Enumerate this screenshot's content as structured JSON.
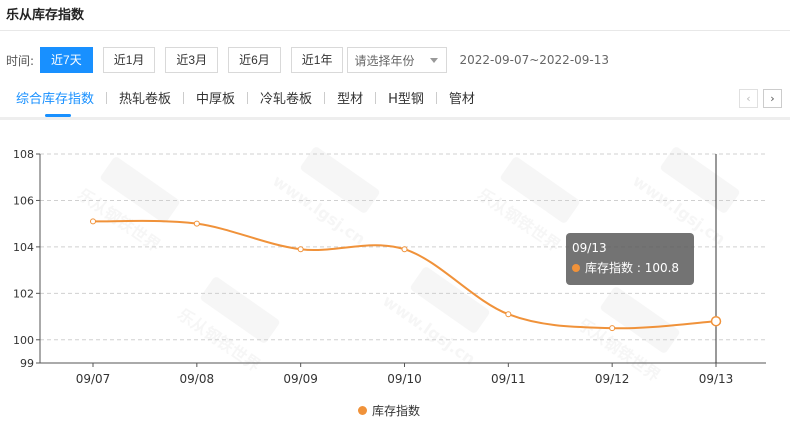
{
  "page": {
    "title": "乐从库存指数"
  },
  "filters": {
    "label": "时间:",
    "ranges": [
      {
        "label": "近7天",
        "active": true
      },
      {
        "label": "近1月",
        "active": false
      },
      {
        "label": "近3月",
        "active": false
      },
      {
        "label": "近6月",
        "active": false
      },
      {
        "label": "近1年",
        "active": false
      }
    ],
    "year_placeholder": "请选择年份",
    "date_range": "2022-09-07~2022-09-13"
  },
  "tabs": [
    {
      "label": "综合库存指数",
      "active": true
    },
    {
      "label": "热轧卷板",
      "active": false
    },
    {
      "label": "中厚板",
      "active": false
    },
    {
      "label": "冷轧卷板",
      "active": false
    },
    {
      "label": "型材",
      "active": false
    },
    {
      "label": "H型钢",
      "active": false
    },
    {
      "label": "管材",
      "active": false
    }
  ],
  "pager": {
    "prev": "‹",
    "next": "›"
  },
  "watermark": {
    "text": "乐从钢铁世界",
    "domain": "www.lgsj.cn"
  },
  "colors": {
    "accent": "#1890ff",
    "series": "#f0923a",
    "tooltip_bg": "#5a5a5a"
  },
  "tooltip": {
    "date": "09/13",
    "series": "库存指数",
    "value": "100.8"
  },
  "chart_data": {
    "type": "line",
    "title": "",
    "xlabel": "",
    "ylabel": "",
    "categories": [
      "09/07",
      "09/08",
      "09/09",
      "09/10",
      "09/11",
      "09/12",
      "09/13"
    ],
    "series": [
      {
        "name": "库存指数",
        "values": [
          105.1,
          105.0,
          103.9,
          103.9,
          101.1,
          100.5,
          100.8
        ]
      }
    ],
    "ylim": [
      99,
      108
    ],
    "yticks": [
      99,
      100,
      102,
      104,
      106,
      108
    ],
    "grid": true,
    "smooth": true,
    "legend": "bottom-center",
    "highlight_category": "09/13"
  }
}
